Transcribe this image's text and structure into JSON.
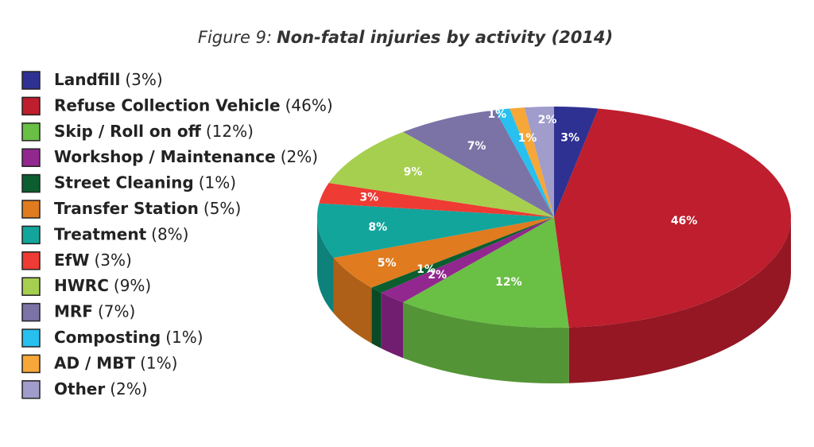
{
  "chart_data": {
    "type": "pie",
    "figure_label": "Figure 9:",
    "title": "Non-fatal injuries by activity (2014)",
    "categories": [
      "Landfill",
      "Refuse Collection Vehicle",
      "Skip / Roll on off",
      "Workshop / Maintenance",
      "Street Cleaning",
      "Transfer Station",
      "Treatment",
      "EfW",
      "HWRC",
      "MRF",
      "Composting",
      "AD / MBT",
      "Other"
    ],
    "values": [
      3,
      46,
      12,
      2,
      1,
      5,
      8,
      3,
      9,
      7,
      1,
      1,
      2
    ],
    "value_labels": [
      "3%",
      "46%",
      "12%",
      "2%",
      "1%",
      "5%",
      "8%",
      "3%",
      "9%",
      "7%",
      "1%",
      "1%",
      "2%"
    ],
    "legend_value_labels": [
      "(3%)",
      "(46%)",
      "(12%)",
      "(2%)",
      "(1%)",
      "(5%)",
      "(8%)",
      "(3%)",
      "(9%)",
      "(7%)",
      "(1%)",
      "(1%)",
      "(2%)"
    ],
    "colors": [
      "#2e3192",
      "#be1e2d",
      "#6abf45",
      "#92278f",
      "#0b5e2f",
      "#e07b1f",
      "#12a59c",
      "#ee3b33",
      "#a6cf4f",
      "#7b73a6",
      "#27c0ef",
      "#f6a737",
      "#a09ccb"
    ],
    "legend": "left"
  }
}
